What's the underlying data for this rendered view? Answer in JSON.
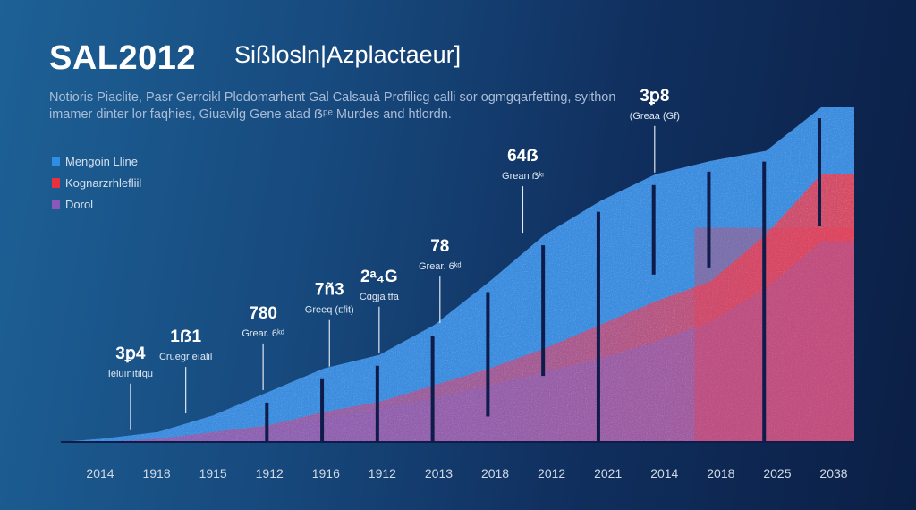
{
  "header": {
    "title": "SAL2012",
    "subtitle": "Sißlosln|Azplactaeur]",
    "description_line1": "Notioris Piaclite, Pasr Gerrcikl Plodomarhent Gal Calsauà Profilicg calli sor ogmgqarfetting, syithon",
    "description_line2": "imamer dinter lor faqhies, Giuavilg Gene atad ẞᵖᵉ Murdes and htlordn."
  },
  "colors": {
    "blue": "#3d8fe0",
    "red": "#ee3b4f",
    "purple": "#8a58b8",
    "bar": "#0e1c4a"
  },
  "chart_data": {
    "type": "area",
    "title": "SAL2012",
    "xlabel": "",
    "ylabel": "",
    "categories": [
      "2014",
      "1918",
      "1915",
      "1912",
      "1916",
      "1912",
      "2013",
      "2018",
      "2012",
      "2021",
      "2014",
      "2018",
      "2025",
      "2038"
    ],
    "ylim": [
      0,
      100
    ],
    "legend_position": "top-left",
    "series": [
      {
        "name": "Mengoin Lline",
        "color": "#3d8fe0",
        "values": [
          1,
          3,
          8,
          15,
          22,
          26,
          35,
          48,
          62,
          72,
          80,
          84,
          87,
          100
        ]
      },
      {
        "name": "Kognarzrhlefliil",
        "color": "#ee3b4f",
        "values": [
          0,
          1,
          3,
          5,
          9,
          12,
          17,
          22,
          28,
          35,
          42,
          48,
          62,
          80
        ]
      },
      {
        "name": "Dorol",
        "color": "#8a58b8",
        "values": [
          0,
          1,
          2,
          4,
          7,
          10,
          13,
          17,
          21,
          25,
          30,
          36,
          46,
          60
        ]
      }
    ],
    "annotations": [
      {
        "category_index": 0,
        "value": "3ꝑ4",
        "text": "Ieluınıtilqu"
      },
      {
        "category_index": 1,
        "value": "1ẞ1",
        "text": "Cruegr eıalil"
      },
      {
        "category_index": 2,
        "value": "780",
        "text": "Grear. 6ᵏᵈ"
      },
      {
        "category_index": 3,
        "value": "7ñ3",
        "text": "Greeq (ᴇfit)"
      },
      {
        "category_index": 4,
        "value": "2ᵃ₄G",
        "text": "Cɑgja tfa"
      },
      {
        "category_index": 5,
        "value": "78",
        "text": "Grear. 6ᵏᵈ"
      },
      {
        "category_index": 6,
        "value": "64ẞ",
        "text": "Grean ẞᵏᶦ"
      },
      {
        "category_index": 7,
        "value": "3ꝑ8",
        "text": "(Greaa (Gf)"
      }
    ]
  }
}
